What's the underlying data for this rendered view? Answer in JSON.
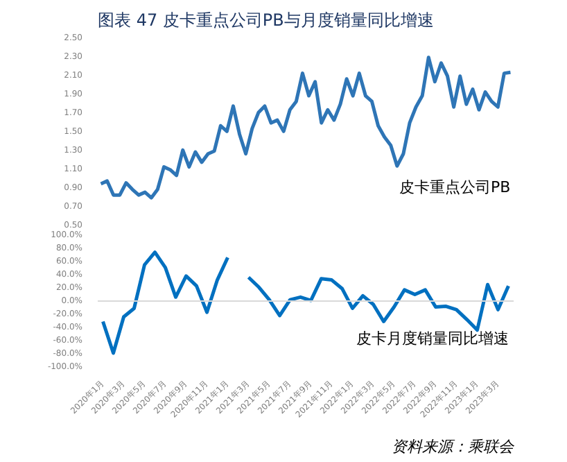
{
  "chart_data": [
    {
      "type": "line",
      "title": "图表 47 皮卡重点公司PB与月度销量同比增速",
      "categories": [
        null,
        null,
        null,
        null,
        null,
        null,
        null,
        null,
        null,
        null,
        null,
        null,
        null,
        null,
        null,
        null,
        null,
        null,
        null,
        null,
        null,
        null,
        null,
        null,
        null,
        null,
        null,
        null,
        null,
        null,
        null,
        null,
        null,
        null,
        null,
        null,
        null,
        null,
        null,
        null,
        null,
        null,
        null,
        null,
        null,
        null,
        null,
        null,
        null,
        null,
        null,
        null,
        null,
        null,
        null,
        null,
        null,
        null,
        null,
        null,
        null,
        null,
        null,
        null,
        null,
        null
      ],
      "series": [
        {
          "name": "皮卡重点公司PB",
          "color": "#2e75b6",
          "values": [
            0.93,
            0.96,
            0.81,
            0.81,
            0.94,
            0.87,
            0.81,
            0.84,
            0.78,
            0.87,
            1.11,
            1.08,
            1.02,
            1.29,
            1.11,
            1.27,
            1.16,
            1.25,
            1.28,
            1.55,
            1.49,
            1.76,
            1.46,
            1.25,
            1.52,
            1.69,
            1.76,
            1.58,
            1.61,
            1.49,
            1.72,
            1.81,
            2.11,
            1.87,
            2.02,
            1.58,
            1.72,
            1.61,
            1.78,
            2.05,
            1.87,
            2.11,
            1.87,
            1.81,
            1.55,
            1.43,
            1.34,
            1.12,
            1.25,
            1.58,
            1.75,
            1.87,
            2.28,
            2.02,
            2.22,
            2.08,
            1.75,
            2.08,
            1.78,
            1.94,
            1.72,
            1.91,
            1.81,
            1.75,
            2.11,
            2.12
          ]
        }
      ],
      "ylim": [
        0.5,
        2.5
      ],
      "yticks": [
        {
          "value": 0.5,
          "label": "0.50"
        },
        {
          "value": 0.7,
          "label": "0.70"
        },
        {
          "value": 0.9,
          "label": "0.90"
        },
        {
          "value": 1.1,
          "label": "1.10"
        },
        {
          "value": 1.3,
          "label": "1.30"
        },
        {
          "value": 1.5,
          "label": "1.50"
        },
        {
          "value": 1.7,
          "label": "1.70"
        },
        {
          "value": 1.9,
          "label": "1.90"
        },
        {
          "value": 2.1,
          "label": "2.10"
        },
        {
          "value": 2.3,
          "label": "2.30"
        },
        {
          "value": 2.5,
          "label": "2.50"
        }
      ],
      "tick_labels": "y",
      "grid": false,
      "legend": false
    },
    {
      "type": "line",
      "categories": [
        "2020年1月",
        null,
        "2020年3月",
        null,
        "2020年5月",
        null,
        "2020年7月",
        null,
        "2020年9月",
        null,
        "2020年11月",
        null,
        "2021年1月",
        null,
        "2021年3月",
        null,
        "2021年5月",
        null,
        "2021年7月",
        null,
        "2021年9月",
        null,
        "2021年11月",
        null,
        "2022年1月",
        null,
        "2022年3月",
        null,
        "2022年5月",
        null,
        "2022年7月",
        null,
        "2022年9月",
        null,
        "2022年11月",
        null,
        "2023年1月",
        null,
        "2023年3月",
        null
      ],
      "series": [
        {
          "name": "皮卡月度销量同比增速",
          "color": "#0070c0",
          "values": [
            -31,
            -79,
            -24,
            -11,
            55,
            74,
            51,
            6,
            38,
            23,
            -17,
            32,
            66,
            null,
            36,
            21,
            2,
            -22,
            2,
            6,
            1,
            34,
            32,
            19,
            -11,
            8,
            -5,
            -31,
            -9,
            17,
            10,
            17,
            -9,
            -8,
            -13,
            -28,
            -44,
            25,
            -13,
            23
          ]
        }
      ],
      "ylim": [
        -100,
        100
      ],
      "yticks": [
        {
          "value": -100,
          "label": "-100.0%"
        },
        {
          "value": -80,
          "label": "-80.0%"
        },
        {
          "value": -60,
          "label": "-60.0%"
        },
        {
          "value": -40,
          "label": "-40.0%"
        },
        {
          "value": -20,
          "label": "-20.0%"
        },
        {
          "value": 0,
          "label": "0.0%"
        },
        {
          "value": 20,
          "label": "20.0%"
        },
        {
          "value": 40,
          "label": "40.0%"
        },
        {
          "value": 60,
          "label": "60.0%"
        },
        {
          "value": 80,
          "label": "80.0%"
        },
        {
          "value": 100,
          "label": "100.0%"
        }
      ],
      "ref_lines": [
        {
          "axis": "y",
          "value": 0,
          "label": null,
          "color": "#d9d9d9"
        }
      ],
      "grid": false,
      "legend": false,
      "annotations": [
        "资料来源：乘联会"
      ]
    }
  ]
}
